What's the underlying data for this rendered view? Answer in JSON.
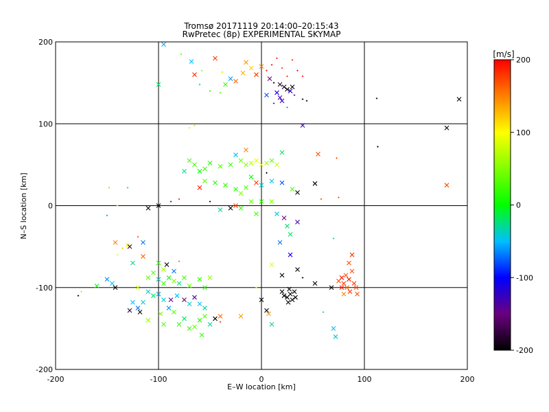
{
  "chart_data": {
    "type": "scatter",
    "title_line1": "Tromsø 20171119 20:14:00–20:15:43",
    "title_line2": "RwPretec (8p) EXPERIMENTAL SKYMAP",
    "xlabel": "E–W location [km]",
    "ylabel": "N–S location [km]",
    "xlim": [
      -200,
      200
    ],
    "ylim": [
      -200,
      200
    ],
    "xticks": [
      -200,
      -100,
      0,
      100,
      200
    ],
    "yticks": [
      -200,
      -100,
      0,
      100,
      200
    ],
    "grid": true,
    "colorbar": {
      "label": "[m/s]",
      "range": [
        -200,
        200
      ],
      "ticks": [
        200,
        100,
        0,
        -100,
        -200
      ]
    },
    "points": [
      {
        "x": -95,
        "y": 197,
        "v": -55,
        "m": "x"
      },
      {
        "x": -78,
        "y": 185,
        "v": 40,
        "m": "+"
      },
      {
        "x": -68,
        "y": 176,
        "v": -50,
        "m": "x"
      },
      {
        "x": -45,
        "y": 180,
        "v": 180,
        "m": "x"
      },
      {
        "x": -65,
        "y": 160,
        "v": 180,
        "m": "x"
      },
      {
        "x": -58,
        "y": 165,
        "v": 60,
        "m": "+"
      },
      {
        "x": -38,
        "y": 163,
        "v": 70,
        "m": "+"
      },
      {
        "x": -35,
        "y": 148,
        "v": 20,
        "m": "x"
      },
      {
        "x": -30,
        "y": 155,
        "v": -60,
        "m": "x"
      },
      {
        "x": -25,
        "y": 152,
        "v": 160,
        "m": "x"
      },
      {
        "x": -18,
        "y": 162,
        "v": 130,
        "m": "x"
      },
      {
        "x": -15,
        "y": 175,
        "v": 140,
        "m": "x"
      },
      {
        "x": -10,
        "y": 168,
        "v": 120,
        "m": "x"
      },
      {
        "x": -5,
        "y": 160,
        "v": 180,
        "m": "x"
      },
      {
        "x": 0,
        "y": 170,
        "v": 150,
        "m": "x"
      },
      {
        "x": 5,
        "y": 165,
        "v": 190,
        "m": "+"
      },
      {
        "x": 10,
        "y": 172,
        "v": 200,
        "m": "+"
      },
      {
        "x": 15,
        "y": 180,
        "v": 190,
        "m": "+"
      },
      {
        "x": 20,
        "y": 168,
        "v": 180,
        "m": "+"
      },
      {
        "x": 25,
        "y": 158,
        "v": 180,
        "m": "+"
      },
      {
        "x": 30,
        "y": 178,
        "v": 190,
        "m": "+"
      },
      {
        "x": 35,
        "y": 165,
        "v": 200,
        "m": "+"
      },
      {
        "x": 40,
        "y": 158,
        "v": 200,
        "m": "+"
      },
      {
        "x": 8,
        "y": 155,
        "v": -150,
        "m": "x"
      },
      {
        "x": 12,
        "y": 150,
        "v": -200,
        "m": "+"
      },
      {
        "x": 18,
        "y": 148,
        "v": -180,
        "m": "x"
      },
      {
        "x": 22,
        "y": 145,
        "v": -190,
        "m": "x"
      },
      {
        "x": 25,
        "y": 142,
        "v": -200,
        "m": "x"
      },
      {
        "x": 28,
        "y": 140,
        "v": -120,
        "m": "x"
      },
      {
        "x": 30,
        "y": 145,
        "v": -200,
        "m": "x"
      },
      {
        "x": 32,
        "y": 135,
        "v": -150,
        "m": "+"
      },
      {
        "x": 15,
        "y": 138,
        "v": -110,
        "m": "x"
      },
      {
        "x": 18,
        "y": 132,
        "v": -130,
        "m": "x"
      },
      {
        "x": 20,
        "y": 128,
        "v": -120,
        "m": "x"
      },
      {
        "x": 12,
        "y": 125,
        "v": -90,
        "m": "+"
      },
      {
        "x": 5,
        "y": 135,
        "v": -80,
        "m": "x"
      },
      {
        "x": 40,
        "y": 130,
        "v": -200,
        "m": "+"
      },
      {
        "x": 44,
        "y": 128,
        "v": -200,
        "m": "+"
      },
      {
        "x": 25,
        "y": 120,
        "v": -60,
        "m": "+"
      },
      {
        "x": -60,
        "y": 148,
        "v": -40,
        "m": "+"
      },
      {
        "x": -50,
        "y": 140,
        "v": 10,
        "m": "+"
      },
      {
        "x": -40,
        "y": 138,
        "v": 30,
        "m": "+"
      },
      {
        "x": -100,
        "y": 148,
        "v": -20,
        "m": "x"
      },
      {
        "x": 112,
        "y": 131,
        "v": -200,
        "m": "+"
      },
      {
        "x": 192,
        "y": 130,
        "v": -200,
        "m": "x"
      },
      {
        "x": 180,
        "y": 95,
        "v": -200,
        "m": "x"
      },
      {
        "x": 113,
        "y": 72,
        "v": -200,
        "m": "+"
      },
      {
        "x": 40,
        "y": 98,
        "v": -130,
        "m": "x"
      },
      {
        "x": -65,
        "y": 98,
        "v": 70,
        "m": "+"
      },
      {
        "x": -70,
        "y": 95,
        "v": 80,
        "m": "+"
      },
      {
        "x": -15,
        "y": 68,
        "v": 150,
        "m": "x"
      },
      {
        "x": 20,
        "y": 65,
        "v": -20,
        "m": "x"
      },
      {
        "x": 55,
        "y": 63,
        "v": 170,
        "m": "x"
      },
      {
        "x": 73,
        "y": 58,
        "v": 170,
        "m": "+"
      },
      {
        "x": -25,
        "y": 62,
        "v": -50,
        "m": "x"
      },
      {
        "x": -20,
        "y": 55,
        "v": 40,
        "m": "x"
      },
      {
        "x": -15,
        "y": 50,
        "v": 50,
        "m": "x"
      },
      {
        "x": -10,
        "y": 52,
        "v": 70,
        "m": "x"
      },
      {
        "x": -5,
        "y": 55,
        "v": 90,
        "m": "x"
      },
      {
        "x": 0,
        "y": 50,
        "v": 100,
        "m": "x"
      },
      {
        "x": 5,
        "y": 52,
        "v": 60,
        "m": "x"
      },
      {
        "x": 10,
        "y": 55,
        "v": 40,
        "m": "x"
      },
      {
        "x": 15,
        "y": 50,
        "v": 80,
        "m": "x"
      },
      {
        "x": -30,
        "y": 50,
        "v": 20,
        "m": "x"
      },
      {
        "x": -40,
        "y": 48,
        "v": 30,
        "m": "x"
      },
      {
        "x": -50,
        "y": 52,
        "v": 10,
        "m": "x"
      },
      {
        "x": -55,
        "y": 45,
        "v": 20,
        "m": "x"
      },
      {
        "x": -60,
        "y": 42,
        "v": 0,
        "m": "x"
      },
      {
        "x": -65,
        "y": 50,
        "v": 20,
        "m": "x"
      },
      {
        "x": -70,
        "y": 55,
        "v": 30,
        "m": "x"
      },
      {
        "x": -75,
        "y": 42,
        "v": -30,
        "m": "x"
      },
      {
        "x": -55,
        "y": 30,
        "v": 30,
        "m": "x"
      },
      {
        "x": -45,
        "y": 28,
        "v": 10,
        "m": "x"
      },
      {
        "x": -35,
        "y": 25,
        "v": 20,
        "m": "x"
      },
      {
        "x": -25,
        "y": 20,
        "v": 10,
        "m": "x"
      },
      {
        "x": -20,
        "y": 15,
        "v": 50,
        "m": "x"
      },
      {
        "x": -15,
        "y": 22,
        "v": 30,
        "m": "x"
      },
      {
        "x": -10,
        "y": 35,
        "v": 0,
        "m": "x"
      },
      {
        "x": 0,
        "y": 25,
        "v": -40,
        "m": "x"
      },
      {
        "x": 10,
        "y": 30,
        "v": -50,
        "m": "x"
      },
      {
        "x": 20,
        "y": 28,
        "v": -80,
        "m": "x"
      },
      {
        "x": 30,
        "y": 20,
        "v": 30,
        "m": "x"
      },
      {
        "x": -5,
        "y": 28,
        "v": 180,
        "m": "x"
      },
      {
        "x": 5,
        "y": 40,
        "v": -200,
        "m": "+"
      },
      {
        "x": 35,
        "y": 16,
        "v": -200,
        "m": "x"
      },
      {
        "x": 52,
        "y": 27,
        "v": -200,
        "m": "x"
      },
      {
        "x": -60,
        "y": 22,
        "v": 190,
        "m": "x"
      },
      {
        "x": -80,
        "y": 8,
        "v": 190,
        "m": "+"
      },
      {
        "x": -88,
        "y": 5,
        "v": -150,
        "m": "+"
      },
      {
        "x": -110,
        "y": -3,
        "v": -200,
        "m": "x"
      },
      {
        "x": -100,
        "y": 0,
        "v": -200,
        "m": "x"
      },
      {
        "x": -140,
        "y": 0,
        "v": 60,
        "m": "+"
      },
      {
        "x": -150,
        "y": -12,
        "v": -60,
        "m": "+"
      },
      {
        "x": -148,
        "y": 22,
        "v": 40,
        "m": "+"
      },
      {
        "x": -130,
        "y": 22,
        "v": -20,
        "m": "+"
      },
      {
        "x": -50,
        "y": 5,
        "v": -200,
        "m": "+"
      },
      {
        "x": -40,
        "y": -5,
        "v": -30,
        "m": "x"
      },
      {
        "x": -30,
        "y": -3,
        "v": -200,
        "m": "x"
      },
      {
        "x": -25,
        "y": 0,
        "v": 180,
        "m": "x"
      },
      {
        "x": -20,
        "y": -3,
        "v": 20,
        "m": "x"
      },
      {
        "x": -10,
        "y": 5,
        "v": 40,
        "m": "x"
      },
      {
        "x": 0,
        "y": 5,
        "v": 20,
        "m": "x"
      },
      {
        "x": 10,
        "y": 5,
        "v": 50,
        "m": "x"
      },
      {
        "x": -5,
        "y": -10,
        "v": 30,
        "m": "x"
      },
      {
        "x": 15,
        "y": -10,
        "v": -40,
        "m": "x"
      },
      {
        "x": 22,
        "y": -15,
        "v": -150,
        "m": "x"
      },
      {
        "x": 25,
        "y": -25,
        "v": -20,
        "m": "x"
      },
      {
        "x": 35,
        "y": -20,
        "v": -130,
        "m": "x"
      },
      {
        "x": 28,
        "y": -35,
        "v": -20,
        "m": "x"
      },
      {
        "x": 58,
        "y": 8,
        "v": 170,
        "m": "+"
      },
      {
        "x": 75,
        "y": 10,
        "v": 170,
        "m": "+"
      },
      {
        "x": 180,
        "y": 25,
        "v": 170,
        "m": "x"
      },
      {
        "x": -115,
        "y": -45,
        "v": -70,
        "m": "x"
      },
      {
        "x": -120,
        "y": -38,
        "v": 170,
        "m": "+"
      },
      {
        "x": -130,
        "y": -48,
        "v": 100,
        "m": "x"
      },
      {
        "x": -128,
        "y": -50,
        "v": -180,
        "m": "x"
      },
      {
        "x": -115,
        "y": -62,
        "v": 160,
        "m": "x"
      },
      {
        "x": -135,
        "y": -52,
        "v": 120,
        "m": "+"
      },
      {
        "x": -140,
        "y": -60,
        "v": 80,
        "m": "+"
      },
      {
        "x": -125,
        "y": -70,
        "v": -30,
        "m": "x"
      },
      {
        "x": -100,
        "y": -70,
        "v": 20,
        "m": "x"
      },
      {
        "x": -92,
        "y": -72,
        "v": -200,
        "m": "x"
      },
      {
        "x": -80,
        "y": -68,
        "v": 160,
        "m": "+"
      },
      {
        "x": -85,
        "y": -80,
        "v": -70,
        "m": "x"
      },
      {
        "x": -95,
        "y": -78,
        "v": 60,
        "m": "x"
      },
      {
        "x": -105,
        "y": -82,
        "v": 30,
        "m": "x"
      },
      {
        "x": -110,
        "y": -88,
        "v": 40,
        "m": "x"
      },
      {
        "x": -100,
        "y": -90,
        "v": -40,
        "m": "x"
      },
      {
        "x": -95,
        "y": -95,
        "v": 20,
        "m": "x"
      },
      {
        "x": -90,
        "y": -88,
        "v": 10,
        "m": "x"
      },
      {
        "x": -85,
        "y": -92,
        "v": 50,
        "m": "x"
      },
      {
        "x": -80,
        "y": -95,
        "v": -20,
        "m": "x"
      },
      {
        "x": -75,
        "y": -88,
        "v": 30,
        "m": "x"
      },
      {
        "x": -70,
        "y": -98,
        "v": 40,
        "m": "x"
      },
      {
        "x": -60,
        "y": -90,
        "v": 20,
        "m": "x"
      },
      {
        "x": -55,
        "y": -100,
        "v": 10,
        "m": "x"
      },
      {
        "x": -50,
        "y": -88,
        "v": 60,
        "m": "x"
      },
      {
        "x": -150,
        "y": -90,
        "v": -60,
        "m": "x"
      },
      {
        "x": -145,
        "y": -95,
        "v": -50,
        "m": "x"
      },
      {
        "x": -142,
        "y": -100,
        "v": -200,
        "m": "x"
      },
      {
        "x": -160,
        "y": -98,
        "v": 0,
        "m": "x"
      },
      {
        "x": -175,
        "y": -105,
        "v": 60,
        "m": "+"
      },
      {
        "x": -178,
        "y": -110,
        "v": -200,
        "m": "+"
      },
      {
        "x": -120,
        "y": -100,
        "v": 80,
        "m": "x"
      },
      {
        "x": -110,
        "y": -105,
        "v": -40,
        "m": "x"
      },
      {
        "x": -105,
        "y": -110,
        "v": -20,
        "m": "x"
      },
      {
        "x": -100,
        "y": -108,
        "v": -60,
        "m": "x"
      },
      {
        "x": -95,
        "y": -115,
        "v": -40,
        "m": "x"
      },
      {
        "x": -88,
        "y": -115,
        "v": -150,
        "m": "x"
      },
      {
        "x": -82,
        "y": -110,
        "v": -50,
        "m": "x"
      },
      {
        "x": -75,
        "y": -115,
        "v": -160,
        "m": "x"
      },
      {
        "x": -70,
        "y": -120,
        "v": -40,
        "m": "x"
      },
      {
        "x": -65,
        "y": -112,
        "v": -140,
        "m": "x"
      },
      {
        "x": -60,
        "y": -120,
        "v": -50,
        "m": "x"
      },
      {
        "x": -55,
        "y": -125,
        "v": -30,
        "m": "x"
      },
      {
        "x": -115,
        "y": -118,
        "v": -40,
        "m": "x"
      },
      {
        "x": -120,
        "y": -125,
        "v": -70,
        "m": "x"
      },
      {
        "x": -125,
        "y": -118,
        "v": -50,
        "m": "x"
      },
      {
        "x": -118,
        "y": -130,
        "v": -200,
        "m": "x"
      },
      {
        "x": -128,
        "y": -128,
        "v": -180,
        "m": "x"
      },
      {
        "x": -90,
        "y": -125,
        "v": -60,
        "m": "x"
      },
      {
        "x": -85,
        "y": -130,
        "v": 30,
        "m": "x"
      },
      {
        "x": -80,
        "y": -145,
        "v": 20,
        "m": "x"
      },
      {
        "x": -75,
        "y": -138,
        "v": -20,
        "m": "x"
      },
      {
        "x": -70,
        "y": -150,
        "v": 20,
        "m": "x"
      },
      {
        "x": -65,
        "y": -148,
        "v": 40,
        "m": "x"
      },
      {
        "x": -60,
        "y": -140,
        "v": 10,
        "m": "x"
      },
      {
        "x": -55,
        "y": -135,
        "v": 30,
        "m": "x"
      },
      {
        "x": -50,
        "y": -145,
        "v": -30,
        "m": "x"
      },
      {
        "x": -45,
        "y": -138,
        "v": -200,
        "m": "x"
      },
      {
        "x": -40,
        "y": -135,
        "v": 160,
        "m": "x"
      },
      {
        "x": -98,
        "y": -132,
        "v": 50,
        "m": "x"
      },
      {
        "x": -110,
        "y": -140,
        "v": 60,
        "m": "x"
      },
      {
        "x": -95,
        "y": -145,
        "v": 30,
        "m": "x"
      },
      {
        "x": -58,
        "y": -158,
        "v": 20,
        "m": "x"
      },
      {
        "x": -20,
        "y": -135,
        "v": 140,
        "m": "x"
      },
      {
        "x": -40,
        "y": -142,
        "v": 180,
        "m": "+"
      },
      {
        "x": -5,
        "y": -100,
        "v": 90,
        "m": "+"
      },
      {
        "x": 10,
        "y": -72,
        "v": 90,
        "m": "x"
      },
      {
        "x": 20,
        "y": -85,
        "v": -200,
        "m": "x"
      },
      {
        "x": 35,
        "y": -78,
        "v": -200,
        "m": "x"
      },
      {
        "x": 40,
        "y": -88,
        "v": -200,
        "m": "+"
      },
      {
        "x": 52,
        "y": -95,
        "v": -200,
        "m": "x"
      },
      {
        "x": 28,
        "y": -60,
        "v": -110,
        "m": "x"
      },
      {
        "x": 18,
        "y": -45,
        "v": -70,
        "m": "x"
      },
      {
        "x": 20,
        "y": -105,
        "v": -200,
        "m": "x"
      },
      {
        "x": 22,
        "y": -110,
        "v": -200,
        "m": "x"
      },
      {
        "x": 25,
        "y": -112,
        "v": -200,
        "m": "x"
      },
      {
        "x": 28,
        "y": -108,
        "v": -200,
        "m": "x"
      },
      {
        "x": 30,
        "y": -115,
        "v": -200,
        "m": "x"
      },
      {
        "x": 32,
        "y": -105,
        "v": -200,
        "m": "x"
      },
      {
        "x": 26,
        "y": -118,
        "v": -200,
        "m": "x"
      },
      {
        "x": 33,
        "y": -112,
        "v": -200,
        "m": "x"
      },
      {
        "x": 27,
        "y": -102,
        "v": -200,
        "m": "x"
      },
      {
        "x": 0,
        "y": -115,
        "v": -200,
        "m": "x"
      },
      {
        "x": 5,
        "y": -128,
        "v": -200,
        "m": "x"
      },
      {
        "x": 7,
        "y": -132,
        "v": 140,
        "m": "x"
      },
      {
        "x": 10,
        "y": -145,
        "v": -30,
        "m": "x"
      },
      {
        "x": 60,
        "y": -130,
        "v": -30,
        "m": "+"
      },
      {
        "x": 70,
        "y": -150,
        "v": -50,
        "m": "x"
      },
      {
        "x": 72,
        "y": -160,
        "v": -40,
        "m": "x"
      },
      {
        "x": 70,
        "y": -40,
        "v": -20,
        "m": "+"
      },
      {
        "x": 68,
        "y": -100,
        "v": -200,
        "m": "x"
      },
      {
        "x": 75,
        "y": -92,
        "v": 170,
        "m": "x"
      },
      {
        "x": 78,
        "y": -88,
        "v": 190,
        "m": "x"
      },
      {
        "x": 80,
        "y": -95,
        "v": 180,
        "m": "x"
      },
      {
        "x": 82,
        "y": -85,
        "v": 170,
        "m": "x"
      },
      {
        "x": 85,
        "y": -90,
        "v": 190,
        "m": "x"
      },
      {
        "x": 88,
        "y": -80,
        "v": 170,
        "m": "x"
      },
      {
        "x": 90,
        "y": -95,
        "v": 180,
        "m": "x"
      },
      {
        "x": 92,
        "y": -100,
        "v": 170,
        "m": "x"
      },
      {
        "x": 86,
        "y": -105,
        "v": 180,
        "m": "x"
      },
      {
        "x": 83,
        "y": -100,
        "v": 160,
        "m": "x"
      },
      {
        "x": 80,
        "y": -108,
        "v": 150,
        "m": "x"
      },
      {
        "x": 78,
        "y": -100,
        "v": 190,
        "m": "x"
      },
      {
        "x": 88,
        "y": -60,
        "v": 180,
        "m": "x"
      },
      {
        "x": 85,
        "y": -70,
        "v": 170,
        "m": "x"
      },
      {
        "x": 93,
        "y": -108,
        "v": 170,
        "m": "x"
      },
      {
        "x": -142,
        "y": -45,
        "v": 150,
        "m": "x"
      }
    ]
  }
}
